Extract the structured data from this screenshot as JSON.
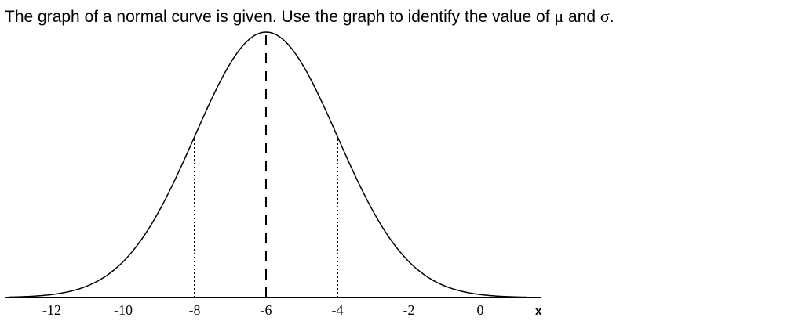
{
  "question": {
    "text_before": "The graph of a normal curve is given. Use the graph to identify the value of ",
    "mu": "μ",
    "text_middle": " and ",
    "sigma": "σ",
    "text_after": "."
  },
  "chart_data": {
    "type": "line",
    "curve": "normal density",
    "mean": -6,
    "std_dev": 2,
    "x_range": [
      -13.2,
      1.3
    ],
    "xticks": [
      -12,
      -10,
      -8,
      -6,
      -4,
      -2,
      0
    ],
    "xtick_labels": [
      "-12",
      "-10",
      "-8",
      "-6",
      "-4",
      "-2",
      "0"
    ],
    "xlabel": "x",
    "reference_lines": [
      {
        "x": -6,
        "style": "dashed",
        "to": "peak"
      },
      {
        "x": -8,
        "style": "dotted",
        "to": "curve"
      },
      {
        "x": -4,
        "style": "dotted",
        "to": "curve"
      }
    ],
    "grid": false,
    "colors": {
      "curve": "#000000",
      "axis": "#000000"
    }
  }
}
